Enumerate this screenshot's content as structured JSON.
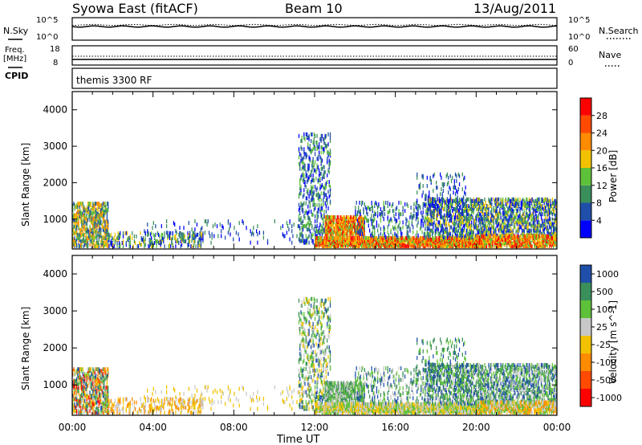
{
  "header": {
    "station": "Syowa East (fitACF)",
    "beam": "Beam 10",
    "date": "13/Aug/2011"
  },
  "sky_panel": {
    "left_label": "N.Sky",
    "right_label": "N.Search",
    "left_tick_top": "10^5",
    "left_tick_bottom": "10^0",
    "right_tick_top": "10^5",
    "right_tick_bottom": "10^0"
  },
  "freq_panel": {
    "left_label_top": "Freq.",
    "left_label_unit": "[MHz]",
    "right_label": "Nave",
    "left_tick_top": "18",
    "left_tick_bottom": "8",
    "right_tick_top": "60",
    "right_tick_bottom": "0"
  },
  "cpid_panel": {
    "label": "CPID",
    "program": "themis 3300 RF"
  },
  "colors": {
    "power": [
      "#0000ff",
      "#1f4fa8",
      "#3a8f5a",
      "#5fc03a",
      "#f2c200",
      "#ff8c00",
      "#ff4a00",
      "#ff0000"
    ],
    "velocity": [
      "#ff0000",
      "#ff4a00",
      "#ff8c00",
      "#f2c200",
      "#c8c8c8",
      "#5fc03a",
      "#3a8f5a",
      "#1f4fa8"
    ]
  },
  "chart_data": [
    {
      "type": "heatmap",
      "name": "Power",
      "ylabel": "Slant Range [km]",
      "yticks": [
        "1000",
        "2000",
        "3000",
        "4000"
      ],
      "ylim": [
        180,
        4500
      ],
      "colorbar_label": "Power [dB]",
      "colorbar_ticks": [
        "4",
        "8",
        "12",
        "16",
        "20",
        "24",
        "28"
      ],
      "crange": [
        0,
        32
      ],
      "xlim": [
        0,
        24
      ]
    },
    {
      "type": "heatmap",
      "name": "Velocity",
      "ylabel": "Slant Range [km]",
      "yticks": [
        "1000",
        "2000",
        "3000",
        "4000"
      ],
      "ylim": [
        180,
        4500
      ],
      "colorbar_label": "Velocity [m s^-1]",
      "colorbar_ticks": [
        "-1000",
        "-500",
        "-100",
        "-25",
        "25",
        "100",
        "500",
        "1000"
      ],
      "xlim": [
        0,
        24
      ]
    }
  ],
  "x_axis": {
    "ticks": [
      "00:00",
      "04:00",
      "08:00",
      "12:00",
      "16:00",
      "20:00",
      "00:00"
    ],
    "label": "Time UT"
  }
}
